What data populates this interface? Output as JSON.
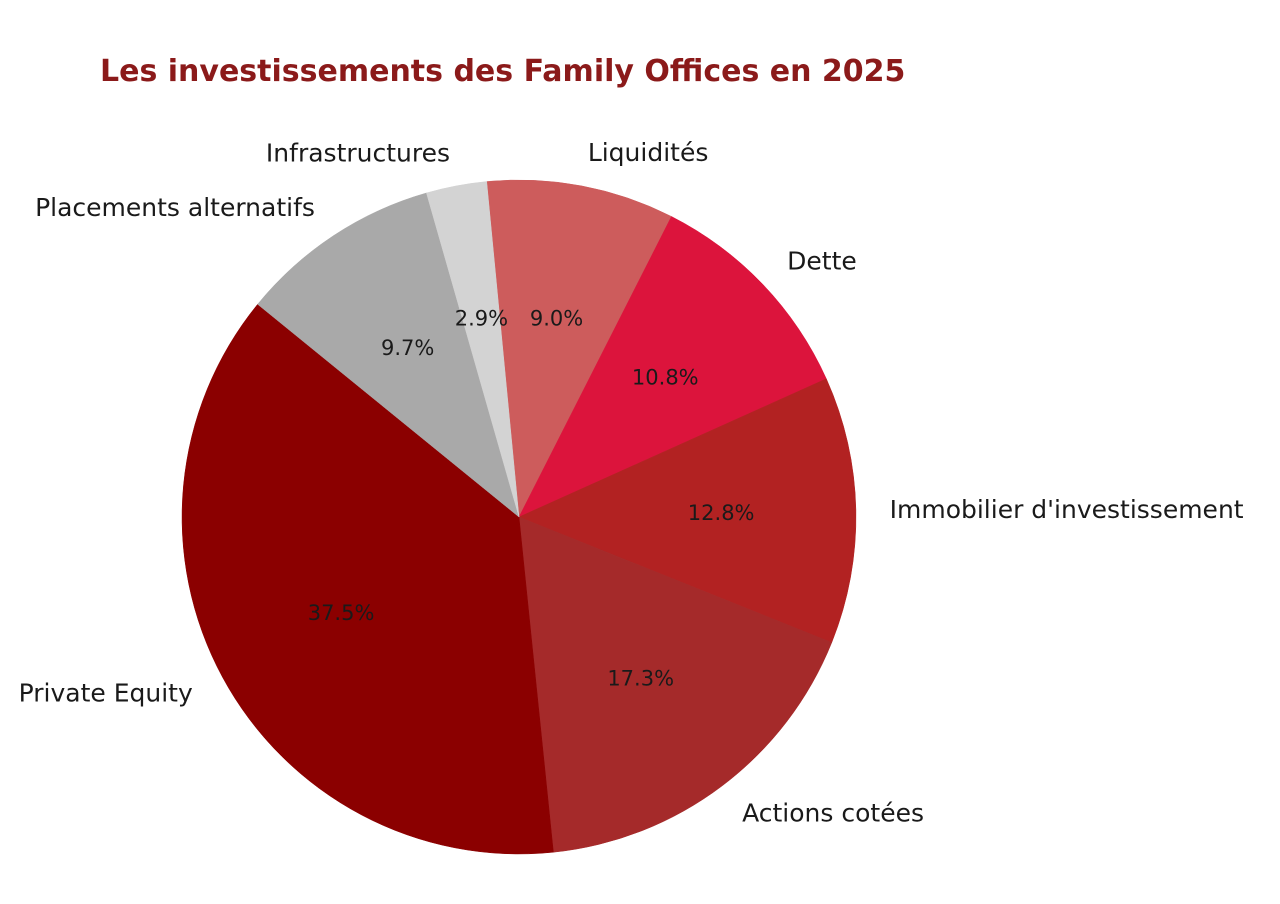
{
  "colors": {
    "title": "#8b1a1a",
    "background": "#ffffff"
  },
  "chart_data": {
    "type": "pie",
    "title": "Les investissements des Family Offices en 2025",
    "start_angle_deg": 95.5,
    "direction": "clockwise",
    "slices": [
      {
        "label": "Liquidités",
        "value": 9.0,
        "pct_label": "9.0%",
        "color": "#cd5c5c"
      },
      {
        "label": "Dette",
        "value": 10.8,
        "pct_label": "10.8%",
        "color": "#dc143c"
      },
      {
        "label": "Immobilier d'investissement",
        "value": 12.8,
        "pct_label": "12.8%",
        "color": "#b22222"
      },
      {
        "label": "Actions cotées",
        "value": 17.3,
        "pct_label": "17.3%",
        "color": "#a52a2a"
      },
      {
        "label": "Private Equity",
        "value": 37.5,
        "pct_label": "37.5%",
        "color": "#8b0000"
      },
      {
        "label": "Placements alternatifs",
        "value": 9.7,
        "pct_label": "9.7%",
        "color": "#a9a9a9"
      },
      {
        "label": "Infrastructures",
        "value": 2.9,
        "pct_label": "2.9%",
        "color": "#d3d3d3"
      }
    ]
  }
}
